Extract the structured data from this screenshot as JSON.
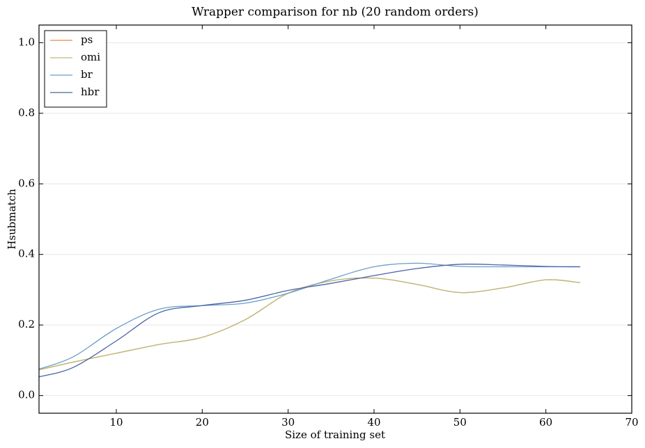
{
  "chart_data": {
    "type": "line",
    "title": "Wrapper comparison for nb (20 random orders)",
    "x_label": "Size of training set",
    "y_label": "Hsubmatch",
    "x": [
      1,
      5,
      10,
      15,
      20,
      25,
      30,
      35,
      40,
      45,
      50,
      55,
      60,
      64
    ],
    "series": [
      {
        "name": "ps",
        "color": "#e8884a",
        "values": [
          0.073,
          0.095,
          0.12,
          0.145,
          0.165,
          0.215,
          0.29,
          0.325,
          0.333,
          0.315,
          0.292,
          0.305,
          0.328,
          0.32
        ]
      },
      {
        "name": "omi",
        "color": "#bdb97a",
        "values": [
          0.073,
          0.095,
          0.12,
          0.145,
          0.165,
          0.215,
          0.29,
          0.325,
          0.333,
          0.315,
          0.292,
          0.305,
          0.328,
          0.32
        ]
      },
      {
        "name": "br",
        "color": "#6b9dc8",
        "values": [
          0.075,
          0.11,
          0.19,
          0.245,
          0.255,
          0.262,
          0.29,
          0.33,
          0.365,
          0.375,
          0.366,
          0.365,
          0.365,
          0.365
        ]
      },
      {
        "name": "hbr",
        "color": "#4a63a8",
        "values": [
          0.053,
          0.08,
          0.155,
          0.235,
          0.255,
          0.27,
          0.298,
          0.318,
          0.34,
          0.36,
          0.372,
          0.37,
          0.366,
          0.365
        ]
      }
    ],
    "xlim": [
      1,
      70
    ],
    "xticks": [
      10,
      20,
      30,
      40,
      50,
      60,
      70
    ],
    "ylim": [
      -0.05,
      1.05
    ],
    "yticks": [
      {
        "value": 0,
        "label": "0.0"
      },
      {
        "value": 0.2,
        "label": "0.2"
      },
      {
        "value": 0.4,
        "label": "0.4"
      },
      {
        "value": 0.6,
        "label": "0.6"
      },
      {
        "value": 0.8,
        "label": "0.8"
      },
      {
        "value": 1,
        "label": "1.0"
      }
    ],
    "grid": true,
    "legend": "upper left"
  }
}
